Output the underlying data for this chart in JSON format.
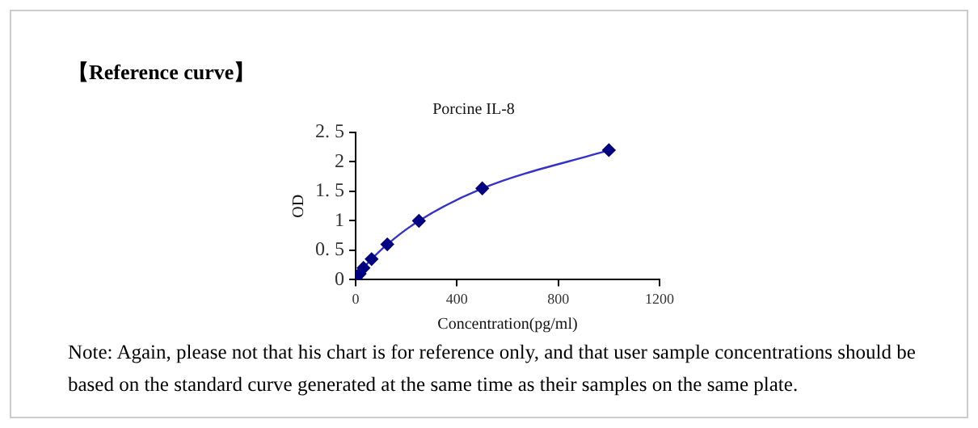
{
  "chart_data": {
    "type": "line",
    "title": "Porcine IL-8",
    "xlabel": "Concentration(pg/ml)",
    "ylabel": "OD",
    "x": [
      0,
      16,
      31,
      63,
      125,
      250,
      500,
      1000
    ],
    "series": [
      {
        "color": "#3333cc",
        "values": [
          0.03,
          0.1,
          0.2,
          0.35,
          0.6,
          1.0,
          1.55,
          2.2
        ]
      }
    ],
    "marker": "diamond",
    "grid": false,
    "legend": false,
    "xlim": [
      0,
      1200
    ],
    "xticks": [
      0,
      400,
      800,
      1200
    ],
    "ylim": [
      0,
      2.5
    ],
    "yticks": [
      0,
      {
        "value": 0.5,
        "label": "0. 5"
      },
      1,
      {
        "value": 1.5,
        "label": "1. 5"
      },
      2,
      {
        "value": 2.5,
        "label": "2. 5"
      }
    ],
    "annotations": [
      "【Reference curve】",
      "Note: Again, please not that his chart is for reference only, and that user sample concentrations should be based on the standard curve generated at the same time as their samples on the same plate."
    ]
  }
}
